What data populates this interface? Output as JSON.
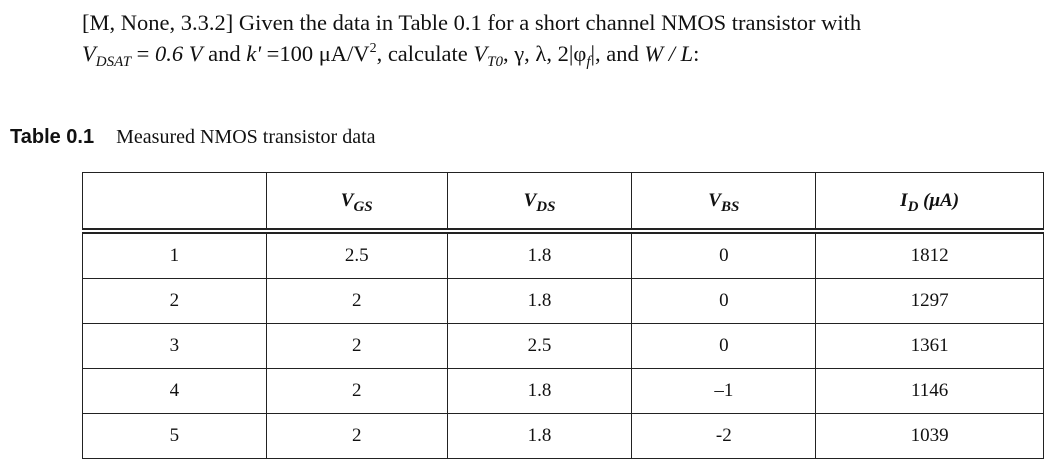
{
  "problem": {
    "line1": "[M, None, 3.3.2] Given the data in Table 0.1 for a short channel NMOS transistor with",
    "line2": [
      "V",
      "DSAT",
      " = ",
      "0.6 V",
      " and ",
      "k'",
      " =100 μA/V",
      "2",
      ", calculate ",
      "V",
      "T0",
      ", γ, λ, 2|φ",
      "f",
      "|, and ",
      "W / L",
      ":"
    ]
  },
  "caption": {
    "label": "Table 0.1",
    "text": "Measured NMOS transistor data"
  },
  "table": {
    "headers": [
      {
        "symbol": "V",
        "sub": "GS"
      },
      {
        "symbol": "V",
        "sub": "DS"
      },
      {
        "symbol": "V",
        "sub": "BS"
      },
      {
        "symbol": "I",
        "sub": "D",
        "unit": " (μA)"
      }
    ],
    "rows": [
      [
        "1",
        "2.5",
        "1.8",
        "0",
        "1812"
      ],
      [
        "2",
        "2",
        "1.8",
        "0",
        "1297"
      ],
      [
        "3",
        "2",
        "2.5",
        "0",
        "1361"
      ],
      [
        "4",
        "2",
        "1.8",
        "–1",
        "1146"
      ],
      [
        "5",
        "2",
        "1.8",
        "-2",
        "1039"
      ]
    ]
  }
}
